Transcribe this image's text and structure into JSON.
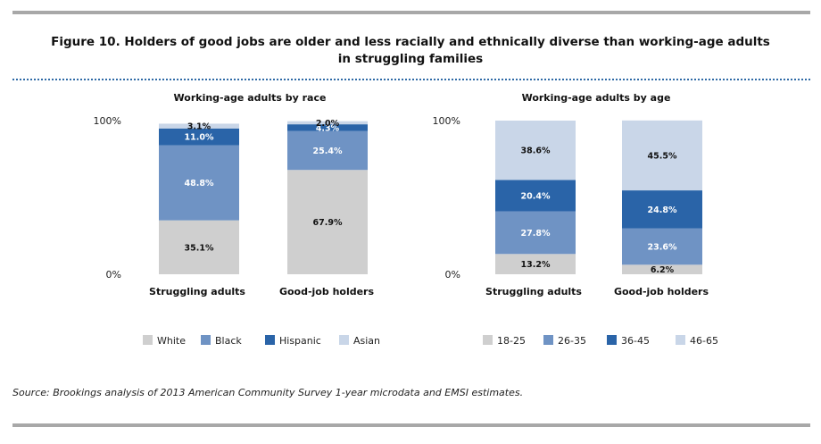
{
  "figure": {
    "title_line1": "Figure 10. Holders of good jobs are older and less racially and ethnically diverse than working-age adults",
    "title_line2": "in struggling families",
    "source": "Source: Brookings analysis of 2013 American Community Survey 1-year microdata and EMSI estimates."
  },
  "colors": {
    "c1": "#cfcfcf",
    "c2": "#6f93c4",
    "c3": "#2a64a8",
    "c4": "#c9d6e8"
  },
  "chart_data": [
    {
      "type": "bar",
      "stacked": true,
      "title": "Working-age adults by race",
      "categories": [
        "Struggling adults",
        "Good-job holders"
      ],
      "yticks": [
        "100%",
        "0%"
      ],
      "ylim": [
        0,
        100
      ],
      "series": [
        {
          "name": "White",
          "values": [
            35.1,
            67.9
          ],
          "labels": [
            "35.1%",
            "67.9%"
          ]
        },
        {
          "name": "Black",
          "values": [
            48.8,
            25.4
          ],
          "labels": [
            "48.8%",
            "25.4%"
          ]
        },
        {
          "name": "Hispanic",
          "values": [
            11.0,
            4.3
          ],
          "labels": [
            "11.0%",
            "4.3%"
          ]
        },
        {
          "name": "Asian",
          "values": [
            3.1,
            2.0
          ],
          "labels": [
            "3.1%",
            "2.0%"
          ]
        }
      ],
      "legend_position": "bottom"
    },
    {
      "type": "bar",
      "stacked": true,
      "title": "Working-age adults by age",
      "categories": [
        "Struggling adults",
        "Good-job holders"
      ],
      "yticks": [
        "100%",
        "0%"
      ],
      "ylim": [
        0,
        100
      ],
      "series": [
        {
          "name": "18-25",
          "values": [
            13.2,
            6.2
          ],
          "labels": [
            "13.2%",
            "6.2%"
          ]
        },
        {
          "name": "26-35",
          "values": [
            27.8,
            23.6
          ],
          "labels": [
            "27.8%",
            "23.6%"
          ]
        },
        {
          "name": "36-45",
          "values": [
            20.4,
            24.8
          ],
          "labels": [
            "20.4%",
            "24.8%"
          ]
        },
        {
          "name": "46-65",
          "values": [
            38.6,
            45.5
          ],
          "labels": [
            "38.6%",
            "45.5%"
          ]
        }
      ],
      "legend_position": "bottom"
    }
  ]
}
